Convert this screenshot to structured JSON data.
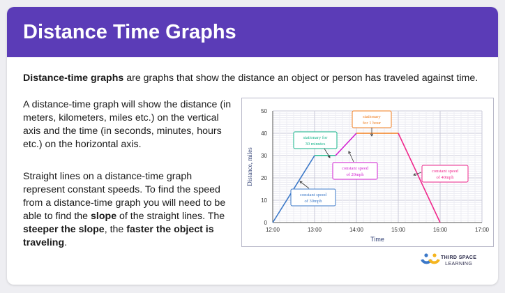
{
  "header": {
    "title": "Distance Time Graphs"
  },
  "intro": {
    "bold": "Distance-time graphs",
    "rest": " are graphs that show the distance an object or person has traveled against time."
  },
  "paragraph1": "A distance-time graph will show the distance (in meters, kilometers, miles etc.) on the vertical axis and the time (in seconds, minutes, hours etc.) on the horizontal axis.",
  "paragraph2": {
    "part1": "Straight lines on a distance-time graph represent constant speeds. To find the speed from a distance-time graph you will need to be able to find the ",
    "bold1": "slope",
    "part2": " of the straight lines. The ",
    "bold2": "steeper the slope",
    "part3": ", the ",
    "bold3": "faster the object is traveling",
    "part4": "."
  },
  "logo": {
    "line1": "THIRD SPACE",
    "line2": "LEARNING"
  },
  "colors": {
    "header": "#5b3cb7",
    "segment1": "#3b78c8",
    "segment2": "#14b48a",
    "segment3": "#d21ed2",
    "segment4": "#f07d1e",
    "segment5": "#f0288c"
  },
  "chart_data": {
    "type": "line",
    "xlabel": "Time",
    "ylabel": "Distance, miles",
    "x_ticks": [
      "12:00",
      "13:00",
      "14:00",
      "15:00",
      "16:00",
      "17:00"
    ],
    "y_ticks": [
      "0",
      "10",
      "20",
      "30",
      "40",
      "50"
    ],
    "xlim": [
      0,
      5
    ],
    "ylim": [
      0,
      50
    ],
    "grid": true,
    "points": [
      {
        "x": "12:00",
        "y": 0
      },
      {
        "x": "13:00",
        "y": 30
      },
      {
        "x": "13:30",
        "y": 30
      },
      {
        "x": "14:00",
        "y": 40
      },
      {
        "x": "15:00",
        "y": 40
      },
      {
        "x": "16:00",
        "y": 0
      }
    ],
    "annotations": [
      {
        "lines": [
          "constant speed",
          "of 30mph"
        ]
      },
      {
        "lines": [
          "stationary for",
          "30 minutes"
        ]
      },
      {
        "lines": [
          "constant speed",
          "of 20mph"
        ]
      },
      {
        "lines": [
          "stationary",
          "for 1 hour"
        ]
      },
      {
        "lines": [
          "constant speed",
          "of 40mph"
        ]
      }
    ]
  }
}
